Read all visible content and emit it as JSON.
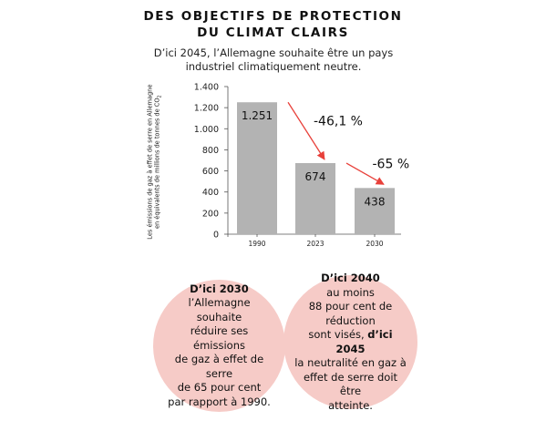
{
  "header": {
    "title_line1": "DES OBJECTIFS DE PROTECTION",
    "title_line2": "DU CLIMAT CLAIRS",
    "subtitle_line1": "D’ici 2045, l’Allemagne souhaite être un pays",
    "subtitle_line2": "industriel climatiquement neutre."
  },
  "chart_data": {
    "type": "bar",
    "categories": [
      "1990",
      "2023",
      "2030"
    ],
    "values": [
      1251,
      674,
      438
    ],
    "value_labels": [
      "1.251",
      "674",
      "438"
    ],
    "ylabel_line1": "Les émissions de gaz à effet de serre en Allemagne",
    "ylabel_line2": "en équivalents de millions de tonnes de CO",
    "ylabel_subscript": "2",
    "yticks": [
      0,
      200,
      400,
      600,
      800,
      1000,
      1200,
      1400
    ],
    "ytick_labels": [
      "0",
      "200",
      "400",
      "600",
      "800",
      "1.000",
      "1.200",
      "1.400"
    ],
    "ylim": [
      0,
      1400
    ],
    "grid": false,
    "bar_color": "#b3b3b3",
    "annotations": [
      {
        "text": "-46,1 %",
        "from": "1990",
        "to": "2023"
      },
      {
        "text": "-65 %",
        "from": "2023",
        "to": "2030"
      }
    ],
    "arrow_color": "#e8403a"
  },
  "circles": {
    "left": {
      "heading": "D’ici 2030",
      "lines": [
        "l’Allemagne souhaite",
        "réduire ses émissions",
        "de gaz à effet de serre",
        "de 65 pour cent",
        "par rapport à 1990."
      ]
    },
    "right": {
      "heading": "D’ici 2040",
      "line1": "au moins",
      "line2": "88 pour cent de réduction",
      "line3_prefix": "sont visés, ",
      "line3_bold": "d’ici 2045",
      "lines_after": [
        "la neutralité en gaz à",
        "effet de serre doit être",
        "atteinte."
      ]
    },
    "color": "#f6cbc7"
  }
}
